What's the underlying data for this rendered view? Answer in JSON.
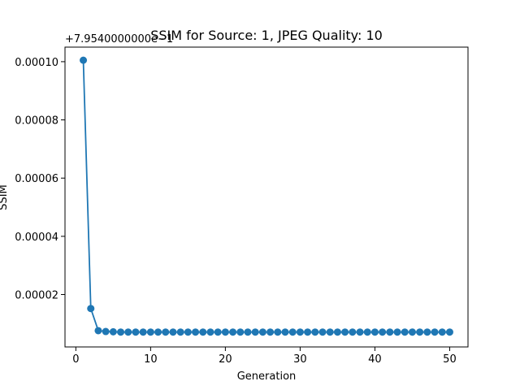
{
  "chart_data": {
    "type": "line",
    "title": "SSIM for Source: 1, JPEG Quality: 10",
    "xlabel": "Generation",
    "ylabel": "SSIM",
    "offset_label": "+7.9540000000e−1",
    "xlim": [
      -1.45,
      52.45
    ],
    "ylim": [
      2e-06,
      0.000105
    ],
    "x_ticks": [
      0,
      10,
      20,
      30,
      40,
      50
    ],
    "x_tick_labels": [
      "0",
      "10",
      "20",
      "30",
      "40",
      "50"
    ],
    "y_ticks": [
      2e-05,
      4e-05,
      6e-05,
      8e-05,
      0.0001
    ],
    "y_tick_labels": [
      "0.00002",
      "0.00004",
      "0.00006",
      "0.00008",
      "0.00010"
    ],
    "grid": false,
    "color": "#1f77b4",
    "series": [
      {
        "x": [
          1,
          2,
          3,
          4,
          5,
          6,
          7,
          8,
          9,
          10,
          11,
          12,
          13,
          14,
          15,
          16,
          17,
          18,
          19,
          20,
          21,
          22,
          23,
          24,
          25,
          26,
          27,
          28,
          29,
          30,
          31,
          32,
          33,
          34,
          35,
          36,
          37,
          38,
          39,
          40,
          41,
          42,
          43,
          44,
          45,
          46,
          47,
          48,
          49,
          50
        ],
        "values": [
          0.0001005,
          1.52e-05,
          7.6e-06,
          7.3e-06,
          7.2e-06,
          7.1e-06,
          7.1e-06,
          7.1e-06,
          7.1e-06,
          7.1e-06,
          7.1e-06,
          7.1e-06,
          7.1e-06,
          7.1e-06,
          7.1e-06,
          7.1e-06,
          7.1e-06,
          7.1e-06,
          7.1e-06,
          7.1e-06,
          7.1e-06,
          7.1e-06,
          7.1e-06,
          7.1e-06,
          7.1e-06,
          7.1e-06,
          7.1e-06,
          7.1e-06,
          7.1e-06,
          7.1e-06,
          7.1e-06,
          7.1e-06,
          7.1e-06,
          7.1e-06,
          7.1e-06,
          7.1e-06,
          7.1e-06,
          7.1e-06,
          7.1e-06,
          7.1e-06,
          7.1e-06,
          7.1e-06,
          7.1e-06,
          7.1e-06,
          7.1e-06,
          7.1e-06,
          7.1e-06,
          7.1e-06,
          7.1e-06,
          7.1e-06
        ]
      }
    ]
  }
}
